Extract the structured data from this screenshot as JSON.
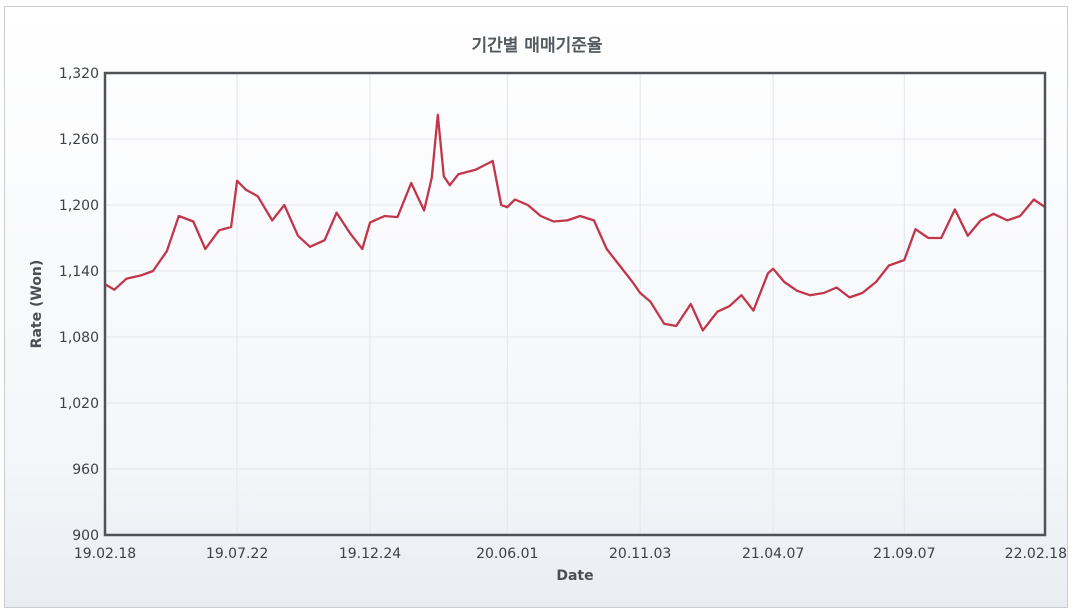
{
  "chart_data": {
    "type": "line",
    "title": "기간별 매매기준율",
    "xlabel": "Date",
    "ylabel": "Rate (Won)",
    "ylim": [
      900,
      1320
    ],
    "yticks": [
      900,
      960,
      1020,
      1080,
      1140,
      1200,
      1260,
      1320
    ],
    "ytick_labels": [
      "900",
      "960",
      "1,020",
      "1,080",
      "1,140",
      "1,200",
      "1,260",
      "1,320"
    ],
    "xlim": [
      "2019-02-18",
      "2022-02-18"
    ],
    "xticks": [
      "2019-02-18",
      "2019-07-22",
      "2019-12-24",
      "2020-06-01",
      "2020-11-03",
      "2021-04-07",
      "2021-09-07",
      "2022-02-18"
    ],
    "xtick_labels": [
      "19.02.18",
      "19.07.22",
      "19.12.24",
      "20.06.01",
      "20.11.03",
      "21.04.07",
      "21.09.07",
      "22.02.18"
    ],
    "grid": true,
    "legend": "none",
    "series_color": "#c2364b",
    "series": [
      {
        "x": [
          "2019-02-18",
          "2019-03-01",
          "2019-03-15",
          "2019-04-01",
          "2019-04-15",
          "2019-05-01",
          "2019-05-15",
          "2019-06-01",
          "2019-06-15",
          "2019-07-01",
          "2019-07-15",
          "2019-07-22",
          "2019-08-01",
          "2019-08-15",
          "2019-09-01",
          "2019-09-15",
          "2019-10-01",
          "2019-10-15",
          "2019-11-01",
          "2019-11-15",
          "2019-12-01",
          "2019-12-15",
          "2019-12-24",
          "2020-01-10",
          "2020-01-25",
          "2020-02-10",
          "2020-02-25",
          "2020-03-05",
          "2020-03-12",
          "2020-03-19",
          "2020-03-26",
          "2020-04-05",
          "2020-04-15",
          "2020-04-25",
          "2020-05-05",
          "2020-05-15",
          "2020-05-25",
          "2020-06-01",
          "2020-06-10",
          "2020-06-25",
          "2020-07-10",
          "2020-07-25",
          "2020-08-10",
          "2020-08-25",
          "2020-09-10",
          "2020-09-25",
          "2020-10-10",
          "2020-10-25",
          "2020-11-03",
          "2020-11-15",
          "2020-12-01",
          "2020-12-15",
          "2021-01-01",
          "2021-01-15",
          "2021-02-01",
          "2021-02-15",
          "2021-03-01",
          "2021-03-15",
          "2021-04-01",
          "2021-04-07",
          "2021-04-20",
          "2021-05-05",
          "2021-05-20",
          "2021-06-05",
          "2021-06-20",
          "2021-07-05",
          "2021-07-20",
          "2021-08-05",
          "2021-08-20",
          "2021-09-07",
          "2021-09-20",
          "2021-10-05",
          "2021-10-20",
          "2021-11-05",
          "2021-11-20",
          "2021-12-05",
          "2021-12-20",
          "2022-01-05",
          "2022-01-20",
          "2022-02-05",
          "2022-02-18"
        ],
        "values": [
          1128,
          1123,
          1133,
          1136,
          1140,
          1158,
          1190,
          1185,
          1160,
          1177,
          1180,
          1222,
          1214,
          1208,
          1186,
          1200,
          1172,
          1162,
          1168,
          1193,
          1174,
          1160,
          1184,
          1190,
          1189,
          1220,
          1195,
          1225,
          1282,
          1226,
          1218,
          1228,
          1230,
          1232,
          1236,
          1240,
          1200,
          1198,
          1205,
          1200,
          1190,
          1185,
          1186,
          1190,
          1186,
          1160,
          1145,
          1130,
          1120,
          1112,
          1092,
          1090,
          1110,
          1086,
          1103,
          1108,
          1118,
          1104,
          1138,
          1142,
          1130,
          1122,
          1118,
          1120,
          1125,
          1116,
          1120,
          1130,
          1145,
          1150,
          1178,
          1170,
          1170,
          1196,
          1172,
          1186,
          1192,
          1186,
          1190,
          1205,
          1198
        ]
      }
    ]
  }
}
